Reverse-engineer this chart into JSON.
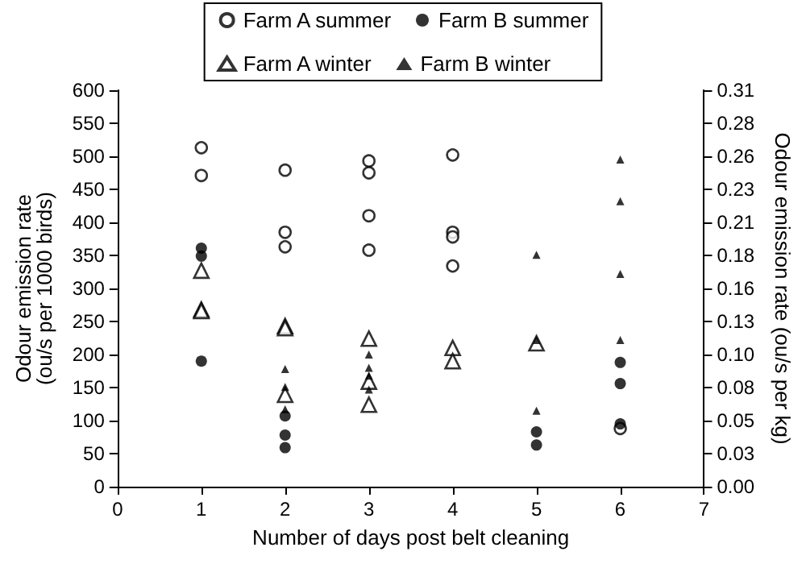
{
  "chart_data": {
    "type": "scatter",
    "xlabel": "Number of days post belt cleaning",
    "ylabel": "Odour emission rate\n(ou/s per 1000 birds)",
    "y2label": "Odour emission rate (ou/s per kg)",
    "xlim": [
      0,
      7
    ],
    "xticks": [
      0,
      1,
      2,
      3,
      4,
      5,
      6,
      7
    ],
    "ylim": [
      0,
      600
    ],
    "yticks": [
      0,
      50,
      100,
      150,
      200,
      250,
      300,
      350,
      400,
      450,
      500,
      550,
      600
    ],
    "y2lim": [
      0,
      0.31
    ],
    "y2ticks": [
      {
        "value": 0,
        "label": "0.00"
      },
      {
        "value": 0.02583,
        "label": "0.03"
      },
      {
        "value": 0.05167,
        "label": "0.05"
      },
      {
        "value": 0.0775,
        "label": "0.08"
      },
      {
        "value": 0.10333,
        "label": "0.10"
      },
      {
        "value": 0.12917,
        "label": "0.13"
      },
      {
        "value": 0.155,
        "label": "0.16"
      },
      {
        "value": 0.18083,
        "label": "0.18"
      },
      {
        "value": 0.20667,
        "label": "0.21"
      },
      {
        "value": 0.2325,
        "label": "0.23"
      },
      {
        "value": 0.25833,
        "label": "0.26"
      },
      {
        "value": 0.28417,
        "label": "0.28"
      },
      {
        "value": 0.31,
        "label": "0.31"
      }
    ],
    "grid": false,
    "legend": "top",
    "series": [
      {
        "name": "Farm A summer",
        "color": "#000000",
        "marker": "circle",
        "x": [
          1,
          1,
          2,
          2,
          2,
          3,
          3,
          3,
          3,
          4,
          4,
          4,
          4,
          6
        ],
        "values": [
          513,
          471,
          479,
          385,
          363,
          493,
          475,
          410,
          358,
          502,
          385,
          378,
          334,
          88
        ]
      },
      {
        "name": "Farm B summer",
        "color": "#000000",
        "marker": "circle",
        "x": [
          1,
          1,
          1,
          2,
          2,
          2,
          5,
          5,
          6,
          6,
          6
        ],
        "values": [
          361,
          349,
          190,
          107,
          78,
          59,
          83,
          63,
          188,
          156,
          95
        ]
      },
      {
        "name": "Farm A winter",
        "color": "#000000",
        "marker": "triangle",
        "x": [
          1,
          1,
          1,
          2,
          2,
          2,
          3,
          3,
          3,
          4,
          4,
          5
        ],
        "values": [
          327,
          268,
          266,
          243,
          240,
          139,
          224,
          159,
          124,
          210,
          190,
          217
        ]
      },
      {
        "name": "Farm B winter",
        "color": "#000000",
        "marker": "triangle",
        "x": [
          2,
          2,
          2,
          3,
          3,
          3,
          3,
          5,
          5,
          5,
          6,
          6,
          6,
          6
        ],
        "values": [
          178,
          151,
          117,
          200,
          180,
          168,
          147,
          351,
          222,
          115,
          495,
          432,
          322,
          222
        ]
      }
    ]
  }
}
